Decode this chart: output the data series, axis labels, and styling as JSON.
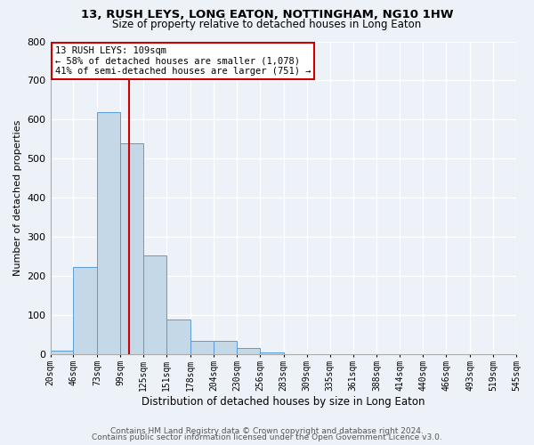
{
  "title1": "13, RUSH LEYS, LONG EATON, NOTTINGHAM, NG10 1HW",
  "title2": "Size of property relative to detached houses in Long Eaton",
  "xlabel": "Distribution of detached houses by size in Long Eaton",
  "ylabel": "Number of detached properties",
  "footer1": "Contains HM Land Registry data © Crown copyright and database right 2024.",
  "footer2": "Contains public sector information licensed under the Open Government Licence v3.0.",
  "annotation_line1": "13 RUSH LEYS: 109sqm",
  "annotation_line2": "← 58% of detached houses are smaller (1,078)",
  "annotation_line3": "41% of semi-detached houses are larger (751) →",
  "bar_edges": [
    20,
    46,
    73,
    99,
    125,
    151,
    178,
    204,
    230,
    256,
    283,
    309,
    335,
    361,
    388,
    414,
    440,
    466,
    493,
    519,
    545
  ],
  "bar_heights": [
    10,
    224,
    620,
    540,
    252,
    90,
    35,
    35,
    17,
    5,
    0,
    0,
    0,
    0,
    0,
    0,
    0,
    0,
    0,
    0
  ],
  "property_size": 109,
  "bar_color": "#c5d8e8",
  "bar_edge_color": "#5b9bd5",
  "redline_color": "#cc0000",
  "background_color": "#edf2f9",
  "annotation_box_color": "#ffffff",
  "annotation_box_edge": "#cc0000",
  "grid_color": "#ffffff",
  "ylim": [
    0,
    800
  ],
  "yticks": [
    0,
    100,
    200,
    300,
    400,
    500,
    600,
    700,
    800
  ]
}
